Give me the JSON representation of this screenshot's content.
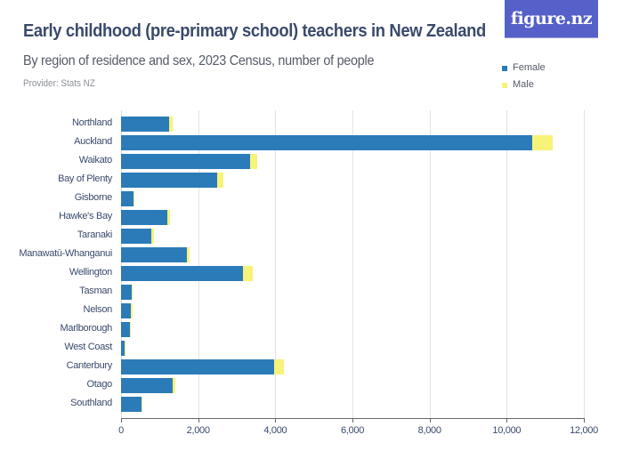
{
  "header": {
    "title": "Early childhood (pre-primary school) teachers in New Zealand",
    "subtitle": "By region of residence and sex, 2023 Census, number of people",
    "provider": "Provider: Stats NZ",
    "logo": "figure.nz"
  },
  "legend": [
    {
      "label": "Female",
      "color": "#2b7bb9"
    },
    {
      "label": "Male",
      "color": "#f7f27a"
    }
  ],
  "colors": {
    "female": "#2b7bb9",
    "male": "#f7f27a",
    "logo_bg": "#5560c8"
  },
  "chart_data": {
    "type": "bar",
    "orientation": "horizontal",
    "stacked": true,
    "title": "Early childhood (pre-primary school) teachers in New Zealand",
    "subtitle": "By region of residence and sex, 2023 Census, number of people",
    "xlabel": "",
    "ylabel": "",
    "xlim": [
      0,
      12000
    ],
    "xticks": [
      0,
      2000,
      4000,
      6000,
      8000,
      10000,
      12000
    ],
    "xtick_labels": [
      "0",
      "2,000",
      "4,000",
      "6,000",
      "8,000",
      "10,000",
      "12,000"
    ],
    "grid": true,
    "legend_position": "top-right",
    "categories": [
      "Northland",
      "Auckland",
      "Waikato",
      "Bay of Plenty",
      "Gisborne",
      "Hawke's Bay",
      "Taranaki",
      "Manawatū-Whanganui",
      "Wellington",
      "Tasman",
      "Nelson",
      "Marlborough",
      "West Coast",
      "Canterbury",
      "Otago",
      "Southland"
    ],
    "series": [
      {
        "name": "Female",
        "values": [
          1250,
          10650,
          3350,
          2500,
          315,
          1210,
          790,
          1700,
          3150,
          285,
          260,
          240,
          100,
          3980,
          1340,
          530
        ]
      },
      {
        "name": "Male",
        "values": [
          90,
          540,
          185,
          155,
          25,
          60,
          70,
          80,
          255,
          25,
          30,
          15,
          6,
          240,
          75,
          15
        ]
      }
    ]
  }
}
